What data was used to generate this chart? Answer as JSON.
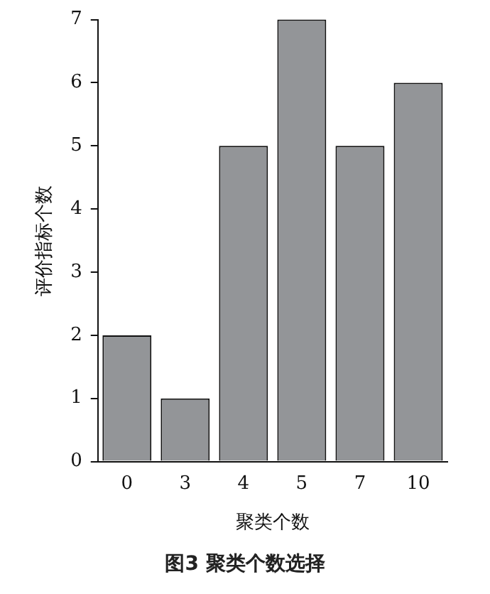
{
  "chart_data": {
    "type": "bar",
    "title": "图3  聚类个数选择",
    "xlabel": "聚类个数",
    "ylabel": "评价指标个数",
    "categories": [
      "0",
      "3",
      "4",
      "5",
      "7",
      "10"
    ],
    "values": [
      2,
      1,
      5,
      7,
      5,
      6
    ],
    "color": "#939598",
    "ylim": [
      0,
      7
    ],
    "yticks": [
      0,
      1,
      2,
      3,
      4,
      5,
      6,
      7
    ],
    "grid": false,
    "legend": false
  }
}
